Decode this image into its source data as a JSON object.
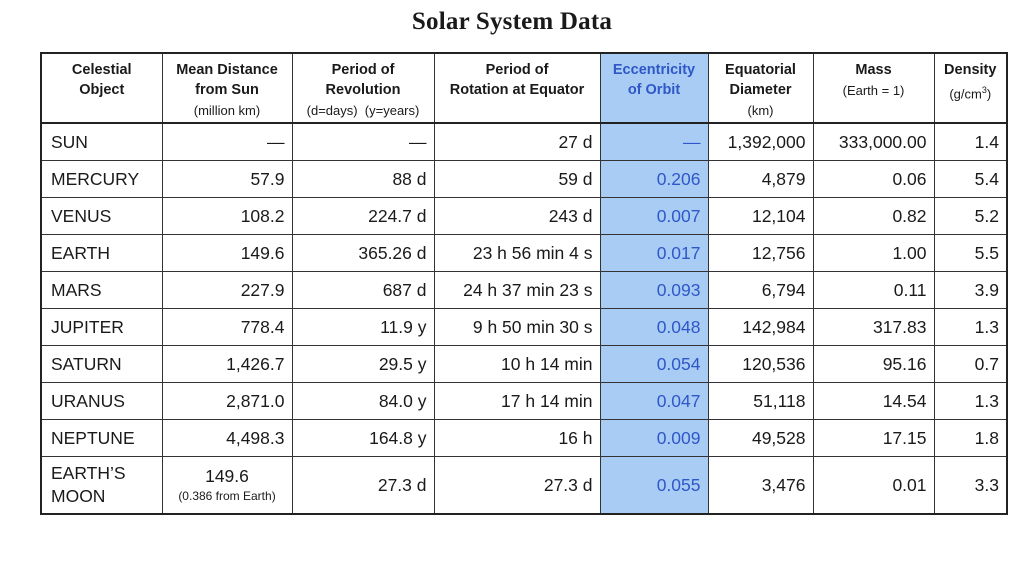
{
  "title": "Solar System Data",
  "colors": {
    "highlight_bg": "#a9ccf5",
    "highlight_text": "#2f57c8"
  },
  "headers": [
    {
      "l1": "Celestial",
      "l2": "Object",
      "sub": ""
    },
    {
      "l1": "Mean Distance",
      "l2": "from Sun",
      "sub": "(million km)"
    },
    {
      "l1": "Period of",
      "l2": "Revolution",
      "sub": "(d=days)  (y=years)"
    },
    {
      "l1": "Period of",
      "l2": "Rotation at Equator",
      "sub": ""
    },
    {
      "l1": "Eccentricity",
      "l2": "of Orbit",
      "sub": ""
    },
    {
      "l1": "Equatorial",
      "l2": "Diameter",
      "sub": "(km)"
    },
    {
      "l1": "Mass",
      "l2": "(Earth = 1)",
      "sub": ""
    },
    {
      "l1": "Density",
      "l2": "(g/cm",
      "l2_sup": "3",
      "l2_end": ")",
      "sub": ""
    }
  ],
  "rows": [
    {
      "name": "SUN",
      "distance": "—",
      "revolution": "—",
      "rotation": "27 d",
      "eccentricity": "—",
      "diameter": "1,392,000",
      "mass": "333,000.00",
      "density": "1.4"
    },
    {
      "name": "MERCURY",
      "distance": "57.9",
      "revolution": "88 d",
      "rotation": "59 d",
      "eccentricity": "0.206",
      "diameter": "4,879",
      "mass": "0.06",
      "density": "5.4"
    },
    {
      "name": "VENUS",
      "distance": "108.2",
      "revolution": "224.7 d",
      "rotation": "243 d",
      "eccentricity": "0.007",
      "diameter": "12,104",
      "mass": "0.82",
      "density": "5.2"
    },
    {
      "name": "EARTH",
      "distance": "149.6",
      "revolution": "365.26 d",
      "rotation": "23 h 56 min 4 s",
      "eccentricity": "0.017",
      "diameter": "12,756",
      "mass": "1.00",
      "density": "5.5"
    },
    {
      "name": "MARS",
      "distance": "227.9",
      "revolution": "687 d",
      "rotation": "24 h 37 min 23 s",
      "eccentricity": "0.093",
      "diameter": "6,794",
      "mass": "0.11",
      "density": "3.9"
    },
    {
      "name": "JUPITER",
      "distance": "778.4",
      "revolution": "11.9 y",
      "rotation": "9 h 50 min 30 s",
      "eccentricity": "0.048",
      "diameter": "142,984",
      "mass": "317.83",
      "density": "1.3"
    },
    {
      "name": "SATURN",
      "distance": "1,426.7",
      "revolution": "29.5 y",
      "rotation": "10 h 14 min",
      "eccentricity": "0.054",
      "diameter": "120,536",
      "mass": "95.16",
      "density": "0.7"
    },
    {
      "name": "URANUS",
      "distance": "2,871.0",
      "revolution": "84.0 y",
      "rotation": "17 h 14 min",
      "eccentricity": "0.047",
      "diameter": "51,118",
      "mass": "14.54",
      "density": "1.3"
    },
    {
      "name": "NEPTUNE",
      "distance": "4,498.3",
      "revolution": "164.8 y",
      "rotation": "16 h",
      "eccentricity": "0.009",
      "diameter": "49,528",
      "mass": "17.15",
      "density": "1.8"
    }
  ],
  "moon": {
    "name_line1": "EARTH’S",
    "name_line2": "MOON",
    "distance": "149.6",
    "distance_note": "(0.386 from Earth)",
    "revolution": "27.3 d",
    "rotation": "27.3 d",
    "eccentricity": "0.055",
    "diameter": "3,476",
    "mass": "0.01",
    "density": "3.3"
  }
}
